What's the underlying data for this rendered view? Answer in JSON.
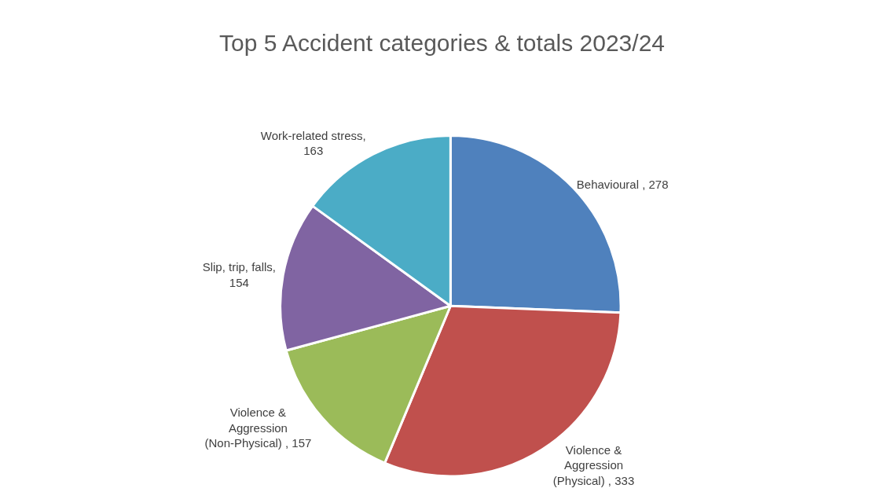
{
  "chart_data": {
    "type": "pie",
    "title": "Top 5 Accident categories & totals 2023/24",
    "categories": [
      "Behavioural , 278",
      "Violence & Aggression (Physical) , 333",
      "Violence & Aggression (Non-Physical) , 157",
      "Slip, trip, falls, 154",
      "Work-related stress, 163"
    ],
    "values": [
      278,
      333,
      157,
      154,
      163
    ],
    "colors": [
      "#4f81bd",
      "#c0504d",
      "#9bbb59",
      "#8064a2",
      "#4bacc6"
    ]
  }
}
